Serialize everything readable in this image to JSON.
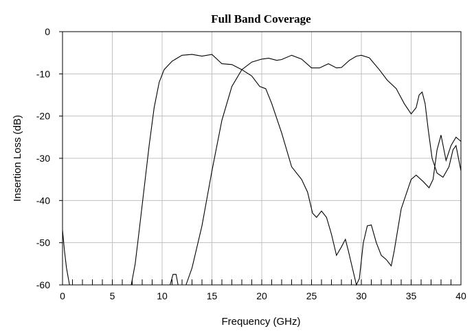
{
  "chart_data": {
    "type": "line",
    "title": "Full Band Coverage",
    "xlabel": "Frequency (GHz)",
    "ylabel": "Insertion Loss (dB)",
    "xlim": [
      0,
      40
    ],
    "ylim": [
      -60,
      0
    ],
    "xticks": [
      0,
      5,
      10,
      15,
      20,
      25,
      30,
      35,
      40
    ],
    "yticks": [
      0,
      -10,
      -20,
      -30,
      -40,
      -50,
      -60
    ],
    "grid": true,
    "legend": "none",
    "series": [
      {
        "points": [
          [
            0,
            -47
          ],
          [
            0.2,
            -52
          ],
          [
            0.4,
            -56
          ],
          [
            0.7,
            -60
          ],
          [
            6.9,
            -60
          ],
          [
            7.3,
            -55
          ],
          [
            7.7,
            -47
          ],
          [
            8.2,
            -37
          ],
          [
            8.7,
            -27
          ],
          [
            9.2,
            -18
          ],
          [
            9.7,
            -12
          ],
          [
            10.2,
            -9
          ],
          [
            11,
            -7
          ],
          [
            12,
            -5.6
          ],
          [
            13,
            -5.4
          ],
          [
            14,
            -5.8
          ],
          [
            15,
            -5.4
          ],
          [
            16,
            -7.6
          ],
          [
            17,
            -7.8
          ],
          [
            18,
            -9
          ],
          [
            19,
            -10.5
          ],
          [
            19.8,
            -13
          ],
          [
            20.4,
            -13.5
          ],
          [
            21,
            -17
          ],
          [
            22,
            -24
          ],
          [
            23,
            -32
          ],
          [
            24,
            -35
          ],
          [
            24.6,
            -38
          ],
          [
            25.1,
            -43
          ],
          [
            25.5,
            -44
          ],
          [
            26,
            -42.5
          ],
          [
            26.5,
            -44
          ],
          [
            27,
            -48
          ],
          [
            27.5,
            -53
          ],
          [
            28,
            -51
          ],
          [
            28.4,
            -49.2
          ],
          [
            28.7,
            -52
          ],
          [
            29.1,
            -56
          ],
          [
            29.5,
            -60
          ],
          [
            29.8,
            -58.5
          ],
          [
            30.2,
            -50
          ],
          [
            30.6,
            -46
          ],
          [
            31,
            -45.8
          ],
          [
            31.5,
            -50
          ],
          [
            32,
            -53
          ],
          [
            32.5,
            -54
          ],
          [
            33,
            -55.5
          ],
          [
            33.3,
            -52
          ],
          [
            34,
            -42
          ],
          [
            35,
            -35
          ],
          [
            35.5,
            -34
          ],
          [
            36.2,
            -35.5
          ],
          [
            36.8,
            -37
          ],
          [
            37.2,
            -35
          ],
          [
            37.6,
            -28
          ],
          [
            38,
            -24.5
          ],
          [
            38.5,
            -30.5
          ],
          [
            39,
            -27
          ],
          [
            39.5,
            -25
          ],
          [
            40,
            -26
          ]
        ]
      },
      {
        "points": [
          [
            10.8,
            -60
          ],
          [
            11.1,
            -57.5
          ],
          [
            11.4,
            -57.5
          ],
          [
            11.6,
            -60
          ],
          [
            12.4,
            -60
          ],
          [
            13,
            -56
          ],
          [
            14,
            -46
          ],
          [
            15,
            -33
          ],
          [
            16,
            -21
          ],
          [
            17,
            -13
          ],
          [
            18,
            -9
          ],
          [
            19,
            -7.2
          ],
          [
            20,
            -6.5
          ],
          [
            20.7,
            -6.3
          ],
          [
            21.5,
            -6.8
          ],
          [
            22,
            -6.6
          ],
          [
            23,
            -5.6
          ],
          [
            24,
            -6.5
          ],
          [
            25,
            -8.6
          ],
          [
            25.8,
            -8.6
          ],
          [
            26.7,
            -7.6
          ],
          [
            27.5,
            -8.6
          ],
          [
            28,
            -8.5
          ],
          [
            28.8,
            -6.8
          ],
          [
            29.5,
            -5.8
          ],
          [
            30,
            -5.6
          ],
          [
            30.8,
            -6.2
          ],
          [
            31.8,
            -9
          ],
          [
            32.6,
            -11.5
          ],
          [
            33.5,
            -13.5
          ],
          [
            34.3,
            -17
          ],
          [
            35,
            -19.5
          ],
          [
            35.5,
            -18
          ],
          [
            35.8,
            -15
          ],
          [
            36.1,
            -14.3
          ],
          [
            36.4,
            -17
          ],
          [
            36.7,
            -23
          ],
          [
            37.1,
            -30
          ],
          [
            37.6,
            -33.5
          ],
          [
            38.2,
            -34.5
          ],
          [
            38.8,
            -32
          ],
          [
            39.2,
            -28
          ],
          [
            39.5,
            -27
          ],
          [
            40,
            -33
          ]
        ]
      }
    ]
  }
}
